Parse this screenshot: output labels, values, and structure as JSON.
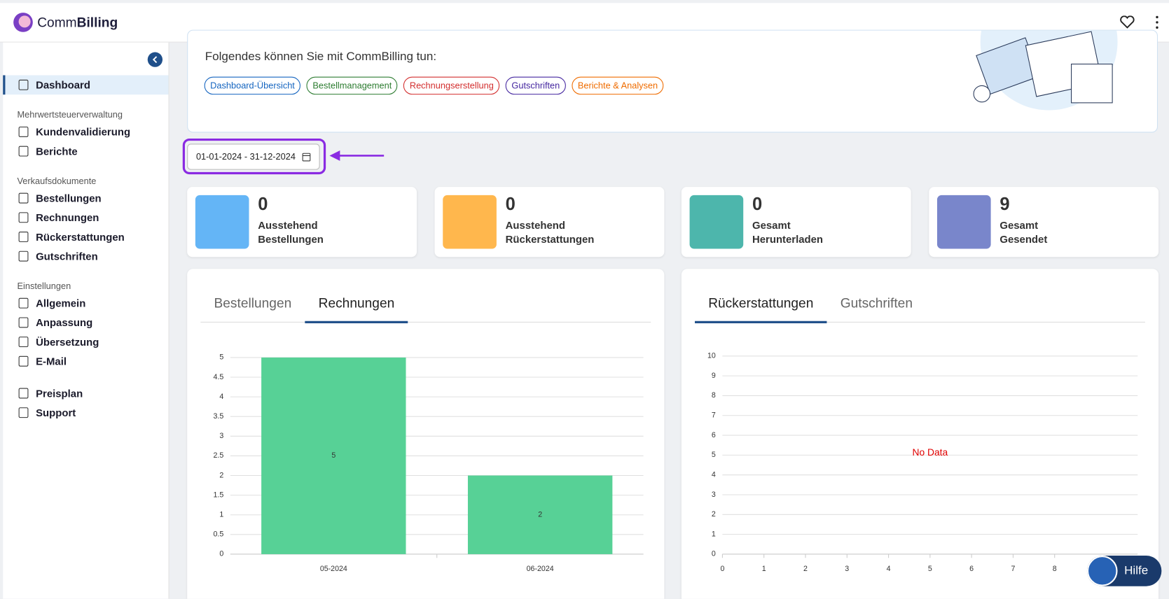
{
  "header": {
    "brand_prefix": "Comm",
    "brand_suffix": "Billing"
  },
  "sidebar": {
    "sections": [
      {
        "items": [
          "Dashboard"
        ]
      },
      {
        "heading": "Mehrwertsteuerverwaltung",
        "items": [
          "Kundenvalidierung",
          "Berichte"
        ]
      },
      {
        "heading": "Verkaufsdokumente",
        "items": [
          "Bestellungen",
          "Rechnungen",
          "Rückerstattungen",
          "Gutschriften"
        ]
      },
      {
        "heading": "Einstellungen",
        "items": [
          "Allgemein",
          "Anpassung",
          "Übersetzung",
          "E-Mail"
        ]
      },
      {
        "items": [
          "Preisplan",
          "Support"
        ]
      }
    ]
  },
  "banner": {
    "title": "Folgendes können Sie mit CommBilling tun:",
    "tags": [
      "Dashboard-Übersicht",
      "Bestellmanagement",
      "Rechnungserstellung",
      "Gutschriften",
      "Berichte & Analysen"
    ]
  },
  "date_range": "01-01-2024 - 31-12-2024",
  "stats": [
    {
      "value": 0,
      "line1": "Ausstehend",
      "line2": "Bestellungen"
    },
    {
      "value": 0,
      "line1": "Ausstehend",
      "line2": "Rückerstattungen"
    },
    {
      "value": 0,
      "line1": "Gesamt",
      "line2": "Herunterladen"
    },
    {
      "value": 9,
      "line1": "Gesamt",
      "line2": "Gesendet"
    }
  ],
  "chart_tabs": [
    [
      "Bestellungen",
      "Rechnungen"
    ],
    [
      "Rückerstattungen",
      "Gutschriften"
    ]
  ],
  "help_button": "Hilfe",
  "chart_data": [
    {
      "type": "bar",
      "categories": [
        "05-2024",
        "06-2024"
      ],
      "values": [
        5,
        2
      ],
      "color": "#57d196",
      "ylim": [
        0,
        5
      ],
      "yticks": [
        0,
        0.5,
        1,
        1.5,
        2,
        2.5,
        3,
        3.5,
        4,
        4.5,
        5
      ],
      "grid": true
    },
    {
      "type": "bar",
      "annotation": "No Data",
      "xlim": [
        0,
        10
      ],
      "xticks": [
        0,
        1,
        2,
        3,
        4,
        5,
        6,
        7,
        8
      ],
      "ylim": [
        0,
        10
      ],
      "yticks": [
        0,
        1,
        2,
        3,
        4,
        5,
        6,
        7,
        8,
        9,
        10
      ],
      "grid": true
    }
  ]
}
